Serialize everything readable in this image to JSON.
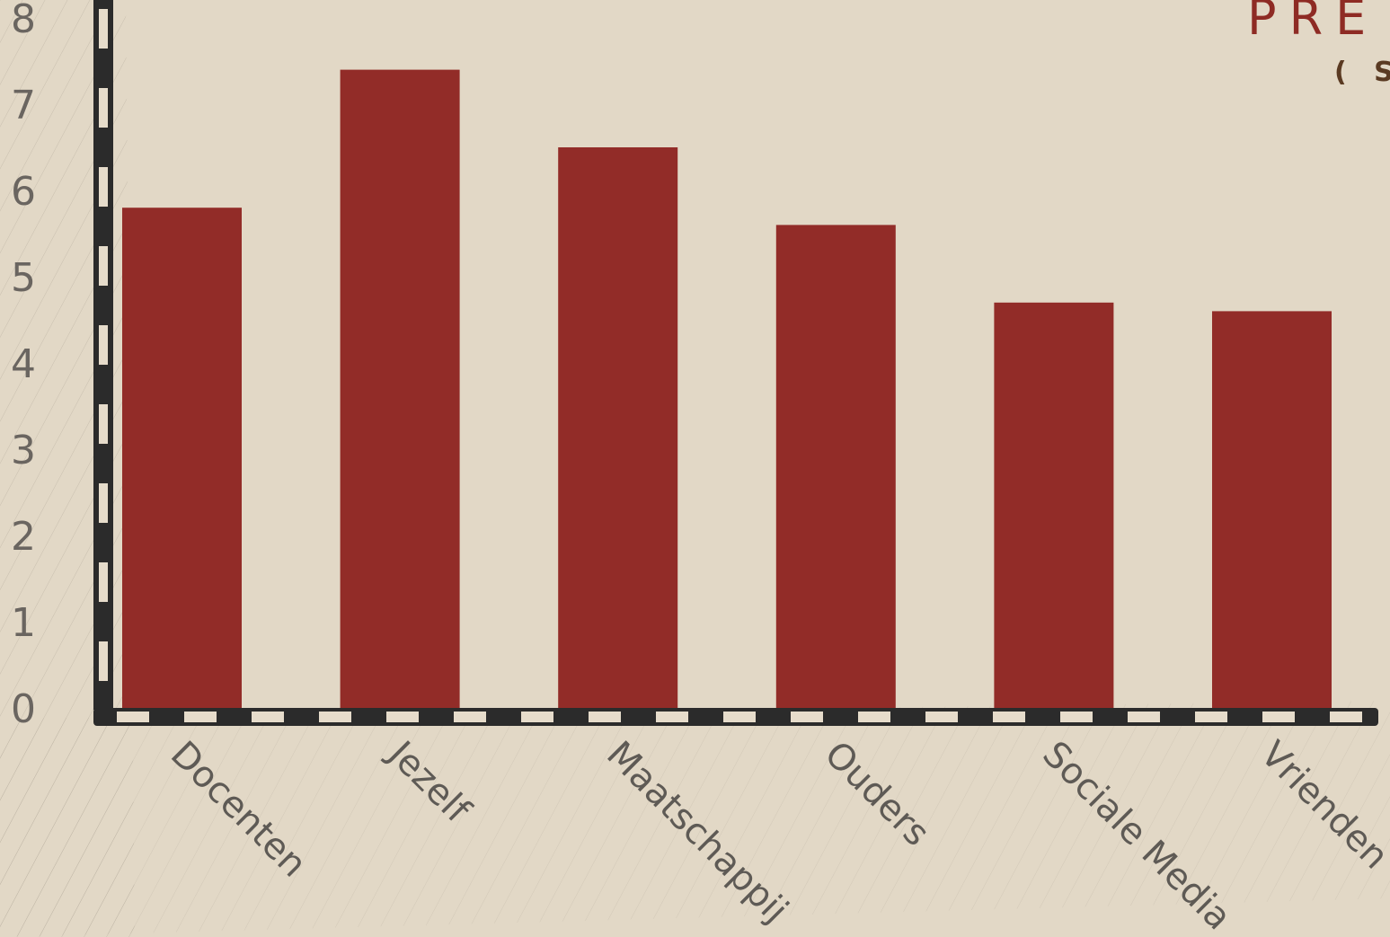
{
  "colors": {
    "background": "#e2d8c6",
    "bar": "#922c28",
    "title": "#8e2b24",
    "subtitle": "#5a3a22",
    "axis_dark": "#2b2b2b",
    "axis_light": "#e6dccb"
  },
  "title": "PRE",
  "subtitle": "( S Y",
  "chart_data": {
    "type": "bar",
    "categories": [
      "Docenten",
      "Jezelf",
      "Maatschappij",
      "Ouders",
      "Sociale Media",
      "Vrienden"
    ],
    "values": [
      5.8,
      7.4,
      6.5,
      5.6,
      4.7,
      4.6
    ],
    "ylim": [
      0,
      8
    ],
    "yticks": [
      "0",
      "1",
      "2",
      "3",
      "4",
      "5",
      "6",
      "7",
      "8"
    ],
    "xlabel": "",
    "ylabel": "",
    "grid": false,
    "legend": "none"
  }
}
